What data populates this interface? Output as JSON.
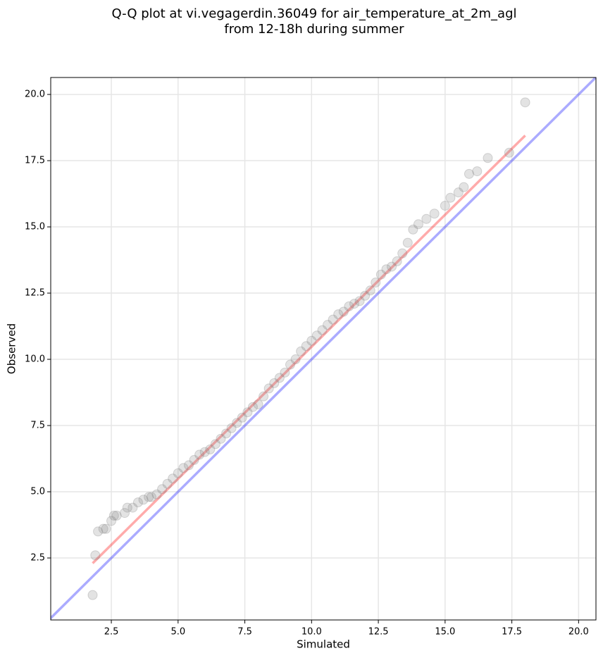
{
  "chart_data": {
    "type": "scatter",
    "title": [
      "Q-Q plot at vi.vegagerdin.36049 for air_temperature_at_2m_agl",
      "from 12-18h during summer"
    ],
    "x_label": "Simulated",
    "y_label": "Observed",
    "xlim": [
      0.23,
      20.65
    ],
    "ylim": [
      0.16,
      20.64
    ],
    "xticks": [
      2.5,
      {
        "value": 5,
        "label": "5.0"
      },
      7.5,
      {
        "value": 10,
        "label": "10.0"
      },
      12.5,
      {
        "value": 15,
        "label": "15.0"
      },
      17.5,
      {
        "value": 20,
        "label": "20.0"
      }
    ],
    "yticks": [
      2.5,
      {
        "value": 5,
        "label": "5.0"
      },
      7.5,
      {
        "value": 10,
        "label": "10.0"
      },
      12.5,
      {
        "value": 15,
        "label": "15.0"
      },
      17.5,
      {
        "value": 20,
        "label": "20.0"
      }
    ],
    "grid": true,
    "color": "#808080",
    "x": [
      1.8,
      1.9,
      2.0,
      2.2,
      2.3,
      2.5,
      2.6,
      2.7,
      3.0,
      3.1,
      3.3,
      3.5,
      3.7,
      3.9,
      4.0,
      4.2,
      4.4,
      4.6,
      4.8,
      5.0,
      5.2,
      5.4,
      5.6,
      5.8,
      6.0,
      6.2,
      6.4,
      6.6,
      6.8,
      7.0,
      7.2,
      7.4,
      7.6,
      7.8,
      8.0,
      8.2,
      8.4,
      8.6,
      8.8,
      9.0,
      9.2,
      9.4,
      9.6,
      9.8,
      10.0,
      10.2,
      10.4,
      10.6,
      10.8,
      11.0,
      11.2,
      11.4,
      11.6,
      11.8,
      12.0,
      12.2,
      12.4,
      12.6,
      12.8,
      13.0,
      13.2,
      13.4,
      13.6,
      13.8,
      14.0,
      14.3,
      14.6,
      15.0,
      15.2,
      15.5,
      15.7,
      15.9,
      16.2,
      16.6,
      17.4,
      18.0
    ],
    "values": [
      1.1,
      2.6,
      3.5,
      3.6,
      3.6,
      3.9,
      4.1,
      4.1,
      4.2,
      4.4,
      4.4,
      4.6,
      4.7,
      4.8,
      4.8,
      4.9,
      5.1,
      5.3,
      5.5,
      5.7,
      5.9,
      6.0,
      6.2,
      6.4,
      6.5,
      6.6,
      6.8,
      7.0,
      7.2,
      7.4,
      7.6,
      7.8,
      8.0,
      8.2,
      8.3,
      8.6,
      8.9,
      9.1,
      9.3,
      9.5,
      9.8,
      10.0,
      10.3,
      10.5,
      10.7,
      10.9,
      11.1,
      11.3,
      11.5,
      11.7,
      11.8,
      12.0,
      12.1,
      12.2,
      12.4,
      12.6,
      12.9,
      13.2,
      13.4,
      13.5,
      13.7,
      14.0,
      14.4,
      14.9,
      15.1,
      15.3,
      15.5,
      15.8,
      16.1,
      16.3,
      16.5,
      17.0,
      17.1,
      17.6,
      17.8,
      19.7
    ],
    "lines": [
      {
        "color": "#0000ff",
        "x": [
          0.16,
          20.65
        ],
        "y": [
          0.16,
          20.65
        ]
      },
      {
        "color": "#ff0000",
        "x": [
          1.8,
          18.0
        ],
        "y": [
          2.3,
          18.45
        ]
      }
    ]
  }
}
